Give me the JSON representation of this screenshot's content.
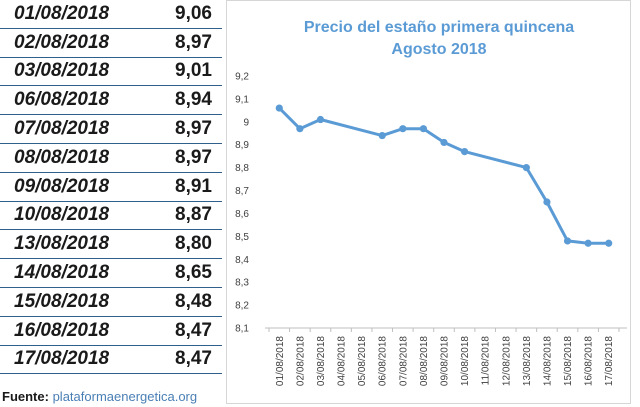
{
  "table": {
    "rows": [
      {
        "date": "01/08/2018",
        "price": "9,06"
      },
      {
        "date": "02/08/2018",
        "price": "8,97"
      },
      {
        "date": "03/08/2018",
        "price": "9,01"
      },
      {
        "date": "06/08/2018",
        "price": "8,94"
      },
      {
        "date": "07/08/2018",
        "price": "8,97"
      },
      {
        "date": "08/08/2018",
        "price": "8,97"
      },
      {
        "date": "09/08/2018",
        "price": "8,91"
      },
      {
        "date": "10/08/2018",
        "price": "8,87"
      },
      {
        "date": "13/08/2018",
        "price": "8,80"
      },
      {
        "date": "14/08/2018",
        "price": "8,65"
      },
      {
        "date": "15/08/2018",
        "price": "8,48"
      },
      {
        "date": "16/08/2018",
        "price": "8,47"
      },
      {
        "date": "17/08/2018",
        "price": "8,47"
      }
    ]
  },
  "source": {
    "label": "Fuente:",
    "value": "plataformaenergetica.org"
  },
  "chart_data": {
    "type": "line",
    "title": "Precio del estaño primera quincena",
    "subtitle": "Agosto 2018",
    "xlabel": "",
    "ylabel": "",
    "x": [
      "01/08/2018",
      "02/08/2018",
      "03/08/2018",
      "04/08/2018",
      "05/08/2018",
      "06/08/2018",
      "07/08/2018",
      "08/08/2018",
      "09/08/2018",
      "10/08/2018",
      "11/08/2018",
      "12/08/2018",
      "13/08/2018",
      "14/08/2018",
      "15/08/2018",
      "16/08/2018",
      "17/08/2018"
    ],
    "points": [
      {
        "x": "01/08/2018",
        "y": 9.06
      },
      {
        "x": "02/08/2018",
        "y": 8.97
      },
      {
        "x": "03/08/2018",
        "y": 9.01
      },
      {
        "x": "06/08/2018",
        "y": 8.94
      },
      {
        "x": "07/08/2018",
        "y": 8.97
      },
      {
        "x": "08/08/2018",
        "y": 8.97
      },
      {
        "x": "09/08/2018",
        "y": 8.91
      },
      {
        "x": "10/08/2018",
        "y": 8.87
      },
      {
        "x": "13/08/2018",
        "y": 8.8
      },
      {
        "x": "14/08/2018",
        "y": 8.65
      },
      {
        "x": "15/08/2018",
        "y": 8.48
      },
      {
        "x": "16/08/2018",
        "y": 8.47
      },
      {
        "x": "17/08/2018",
        "y": 8.47
      }
    ],
    "yticks": [
      "8,1",
      "8,2",
      "8,3",
      "8,4",
      "8,5",
      "8,6",
      "8,7",
      "8,8",
      "8,9",
      "9",
      "9,1",
      "9,2"
    ],
    "ylim": [
      8.1,
      9.2
    ],
    "grid": false,
    "legend": "none",
    "line_color": "#5b9bd5"
  }
}
